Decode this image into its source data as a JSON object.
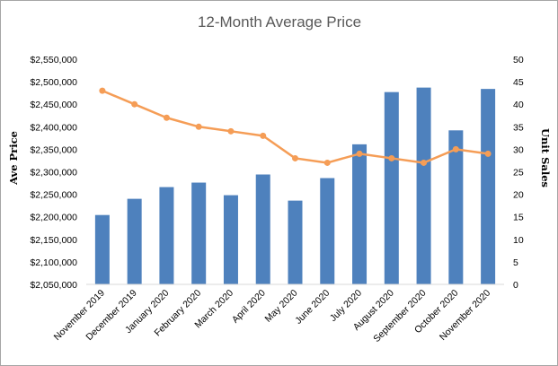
{
  "chart_data": {
    "type": "bar+line",
    "title": "12-Month Average Price",
    "categories": [
      "November 2019",
      "December 2019",
      "January 2020",
      "February 2020",
      "March 2020",
      "April 2020",
      "May 2020",
      "June 2020",
      "July 2020",
      "August 2020",
      "September 2020",
      "October 2020",
      "November 2020"
    ],
    "series": [
      {
        "name": "",
        "type": "bar",
        "axis": "left",
        "color": "#4e81bd",
        "values": [
          2204000,
          2240000,
          2266000,
          2276000,
          2248000,
          2294000,
          2236000,
          2286000,
          2361000,
          2477000,
          2487000,
          2392000,
          2484000
        ]
      },
      {
        "name": "",
        "type": "line",
        "axis": "right",
        "color": "#f59d56",
        "values": [
          43,
          40,
          37,
          35,
          34,
          33,
          28,
          27,
          29,
          28,
          27,
          30,
          29
        ]
      }
    ],
    "ylabel": "Ave Price",
    "y2label": "Unit Sales",
    "ylim": [
      2050000,
      2550000
    ],
    "y2lim": [
      0,
      50
    ],
    "yticks": [
      "$2,050,000",
      "$2,100,000",
      "$2,150,000",
      "$2,200,000",
      "$2,250,000",
      "$2,300,000",
      "$2,350,000",
      "$2,400,000",
      "$2,450,000",
      "$2,500,000",
      "$2,550,000"
    ],
    "y2ticks": [
      "0",
      "5",
      "10",
      "15",
      "20",
      "25",
      "30",
      "35",
      "40",
      "45",
      "50"
    ],
    "grid": false
  }
}
